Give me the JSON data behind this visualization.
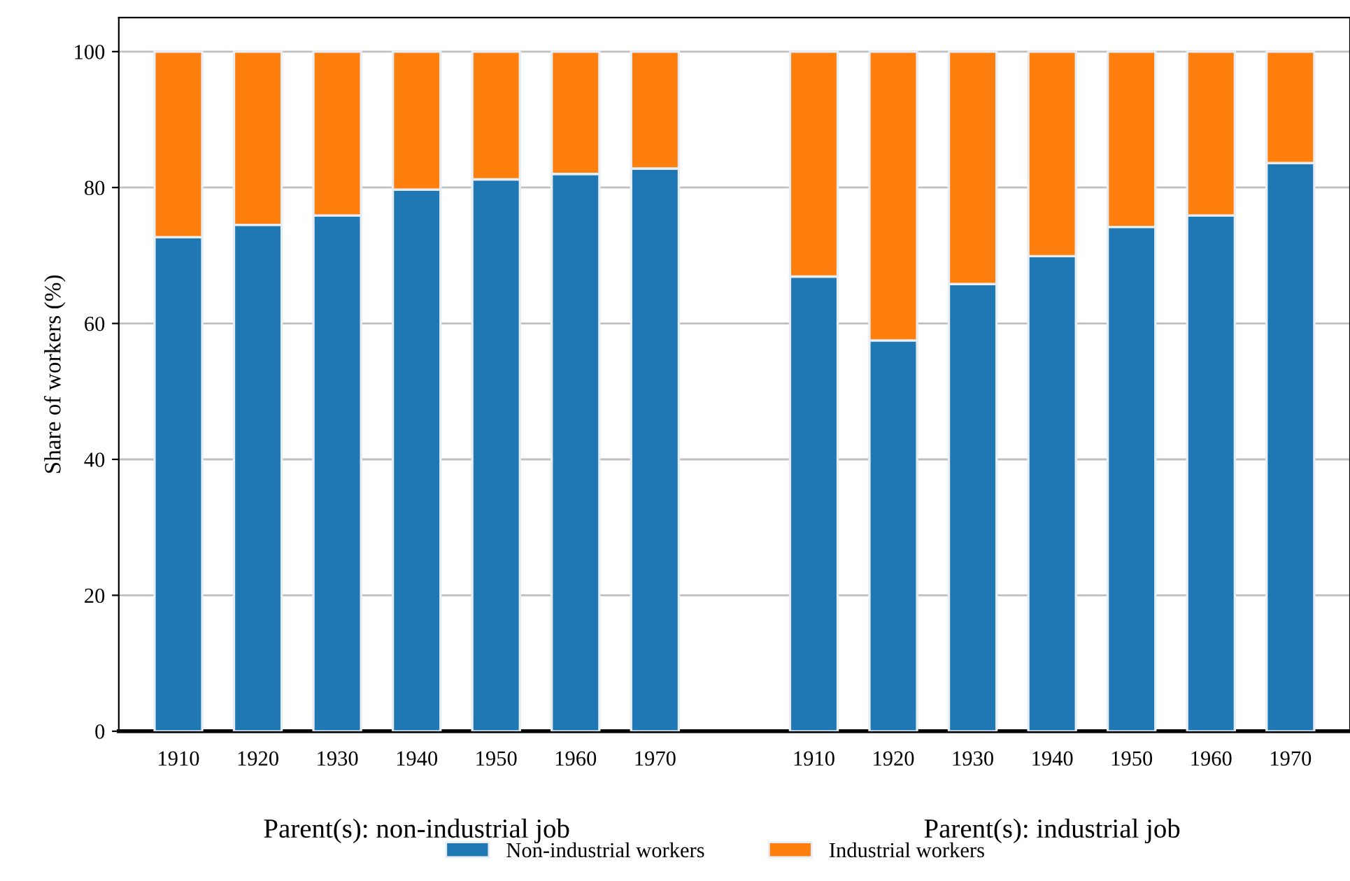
{
  "chart_data": {
    "type": "bar",
    "stacked": true,
    "ylabel": "Share of workers (%)",
    "categories": [
      "1910",
      "1920",
      "1930",
      "1940",
      "1950",
      "1960",
      "1970",
      null,
      "1910",
      "1920",
      "1930",
      "1940",
      "1950",
      "1960",
      "1970"
    ],
    "series": [
      {
        "name": "Non-industrial workers",
        "color": "#1f77b4",
        "values": [
          72.7,
          74.5,
          75.9,
          79.7,
          81.2,
          82.0,
          82.8,
          null,
          66.9,
          57.5,
          65.8,
          69.9,
          74.2,
          75.9,
          83.6
        ]
      },
      {
        "name": "Industrial workers",
        "color": "#ff7f0e",
        "values": [
          27.3,
          25.5,
          24.1,
          20.3,
          18.8,
          18.0,
          17.2,
          null,
          33.1,
          42.5,
          34.2,
          30.1,
          25.8,
          24.1,
          16.4
        ]
      }
    ],
    "annotations": [
      "Parent(s): non-industrial job",
      "Parent(s): industrial job"
    ],
    "ylim": [
      0,
      105
    ],
    "yticks": [
      0,
      20,
      40,
      60,
      80,
      100
    ],
    "grid": "y",
    "legend": "bottom"
  }
}
